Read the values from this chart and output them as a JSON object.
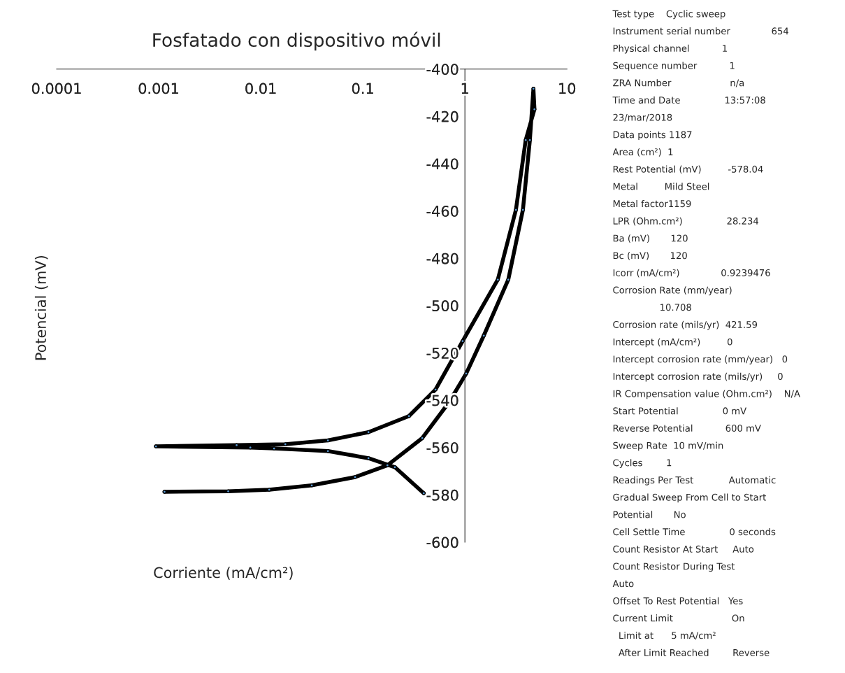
{
  "chart_data": {
    "type": "line",
    "title": "Fosfatado con dispositivo móvil",
    "xlabel": "Corriente (mA/cm²)",
    "ylabel": "Potencial (mV)",
    "log": "x",
    "xlim": [
      0.0001,
      10
    ],
    "xticks": [
      0.0001,
      0.001,
      0.01,
      0.1,
      1,
      10
    ],
    "ylim": [
      -600,
      -400
    ],
    "yticks": [
      -600,
      -580,
      -560,
      -540,
      -520,
      -500,
      -480,
      -460,
      -440,
      -420,
      -400
    ],
    "grid": false,
    "marker": "circle",
    "line_style": "solid",
    "series": [
      {
        "color": "#000000",
        "x": [
          0.00114,
          0.0048,
          0.0121,
          0.0316,
          0.084,
          0.174,
          0.382,
          0.695,
          1.03,
          1.53,
          2.66,
          3.7,
          4.33,
          4.69,
          4.8,
          3.94,
          3.16,
          2.1,
          0.95,
          0.515,
          0.283,
          0.1135,
          0.0455,
          0.0174,
          0.0058,
          0.00094,
          0.0079,
          0.0135,
          0.0455,
          0.1135,
          0.206,
          0.395
        ],
        "values": [
          -578.7,
          -578.5,
          -577.8,
          -576,
          -572.5,
          -567.5,
          -556,
          -541,
          -528.7,
          -512.7,
          -489,
          -459.5,
          -430,
          -408.3,
          -417,
          -430,
          -459.5,
          -489,
          -515,
          -535.5,
          -546.7,
          -553.5,
          -557,
          -558.6,
          -559,
          -559.5,
          -560,
          -560.4,
          -561.5,
          -564.5,
          -568.3,
          -579.3
        ]
      }
    ],
    "annotations": [
      "Test type    Cyclic sweep",
      "Instrument serial number              654",
      "Physical channel           1",
      "Sequence number           1",
      "ZRA Number                    n/a",
      "Time and Date               13:57:08",
      "23/mar/2018",
      "Data points 1187",
      "Area (cm²)  1",
      "Rest Potential (mV)         -578.04",
      "Metal         Mild Steel",
      "Metal factor1159",
      "LPR (Ohm.cm²)               28.234",
      "Ba (mV)       120",
      "Bc (mV)       120",
      "Icorr (mA/cm²)              0.9239476",
      "Corrosion Rate (mm/year)",
      "                10.708",
      "Corrosion rate (mils/yr)  421.59",
      "Intercept (mA/cm²)         0",
      "Intercept corrosion rate (mm/year)   0",
      "Intercept corrosion rate (mils/yr)     0",
      "IR Compensation value (Ohm.cm²)    N/A",
      "Start Potential               0 mV",
      "Reverse Potential           600 mV",
      "Sweep Rate  10 mV/min",
      "Cycles        1",
      "Readings Per Test            Automatic",
      "Gradual Sweep From Cell to Start",
      "Potential       No",
      "Cell Settle Time               0 seconds",
      "Count Resistor At Start     Auto",
      "Count Resistor During Test",
      "Auto",
      "Offset To Rest Potential   Yes",
      "Current Limit                    On",
      "  Limit at      5 mA/cm²",
      "  After Limit Reached        Reverse"
    ]
  }
}
